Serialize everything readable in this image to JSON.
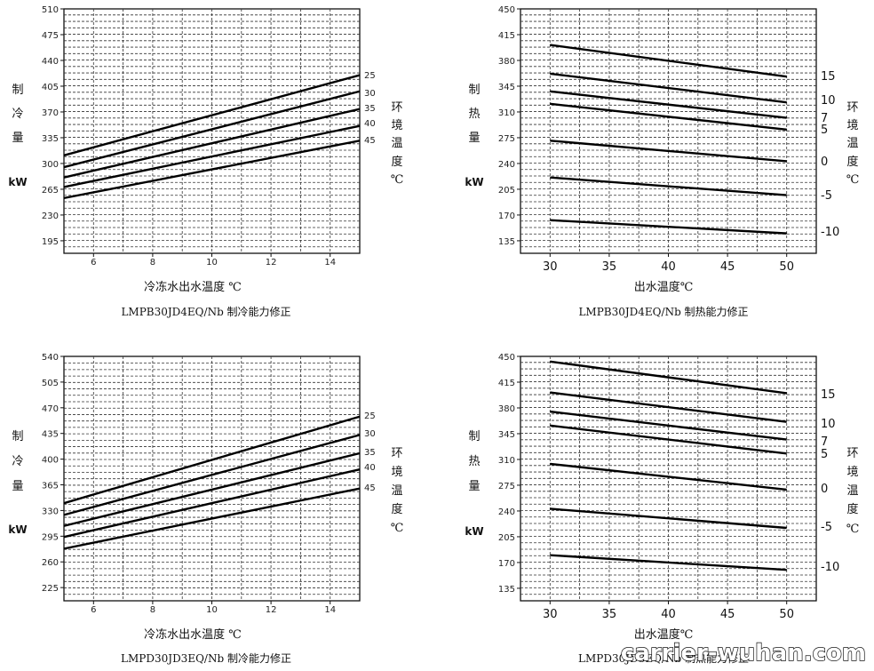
{
  "watermark": "carrier-wuhan.com",
  "chart_data": [
    {
      "type": "line",
      "title": "LMPB30JD4EQ/Nb 制冷能力修正",
      "xlabel": "冷冻水出水温度 ℃",
      "ylabel": [
        "制",
        "冷",
        "量"
      ],
      "yunit": "kW",
      "legend_title": [
        "环",
        "境",
        "温",
        "度",
        "℃"
      ],
      "xlim": [
        5,
        15
      ],
      "ylim": [
        178,
        510
      ],
      "xticks": [
        6,
        8,
        10,
        12,
        14
      ],
      "yticks": [
        195,
        230,
        265,
        300,
        335,
        370,
        405,
        440,
        475,
        510
      ],
      "grid": true,
      "series": [
        {
          "name": "25",
          "x": [
            5,
            15
          ],
          "values": [
            311,
            420
          ]
        },
        {
          "name": "30",
          "x": [
            5,
            15
          ],
          "values": [
            295,
            398
          ]
        },
        {
          "name": "35",
          "x": [
            5,
            15
          ],
          "values": [
            281,
            374
          ]
        },
        {
          "name": "40",
          "x": [
            5,
            15
          ],
          "values": [
            268,
            351
          ]
        },
        {
          "name": "45",
          "x": [
            5,
            15
          ],
          "values": [
            253,
            331
          ]
        }
      ]
    },
    {
      "type": "line",
      "title": "LMPB30JD4EQ/Nb 制热能力修正",
      "xlabel": "出水温度℃",
      "ylabel": [
        "制",
        "热",
        "量"
      ],
      "yunit": "kW",
      "legend_title": [
        "环",
        "境",
        "温",
        "度",
        "℃"
      ],
      "xlim": [
        27.5,
        52.5
      ],
      "ylim": [
        118,
        450
      ],
      "xticks": [
        30,
        35,
        40,
        45,
        50
      ],
      "yticks": [
        135,
        170,
        205,
        240,
        275,
        310,
        345,
        380,
        415,
        450
      ],
      "grid": true,
      "series": [
        {
          "name": "15",
          "x": [
            30,
            50
          ],
          "values": [
            401,
            358
          ]
        },
        {
          "name": "10",
          "x": [
            30,
            50
          ],
          "values": [
            362,
            323
          ]
        },
        {
          "name": "7",
          "x": [
            30,
            50
          ],
          "values": [
            338,
            302
          ]
        },
        {
          "name": "5",
          "x": [
            30,
            50
          ],
          "values": [
            321,
            286
          ]
        },
        {
          "name": "0",
          "x": [
            30,
            50
          ],
          "values": [
            271,
            243
          ]
        },
        {
          "name": "-5",
          "x": [
            30,
            50
          ],
          "values": [
            221,
            197
          ]
        },
        {
          "name": "-10",
          "x": [
            30,
            50
          ],
          "values": [
            163,
            145
          ]
        }
      ]
    },
    {
      "type": "line",
      "title": "LMPD30JD3EQ/Nb 制冷能力修正",
      "xlabel": "冷冻水出水温度 ℃",
      "ylabel": [
        "制",
        "冷",
        "量"
      ],
      "yunit": "kW",
      "legend_title": [
        "环",
        "境",
        "温",
        "度",
        "℃"
      ],
      "xlim": [
        5,
        15
      ],
      "ylim": [
        207,
        540
      ],
      "xticks": [
        6,
        8,
        10,
        12,
        14
      ],
      "yticks": [
        225,
        260,
        295,
        330,
        365,
        400,
        435,
        470,
        505,
        540
      ],
      "grid": true,
      "series": [
        {
          "name": "25",
          "x": [
            5,
            15
          ],
          "values": [
            340,
            458
          ]
        },
        {
          "name": "30",
          "x": [
            5,
            15
          ],
          "values": [
            324,
            433
          ]
        },
        {
          "name": "35",
          "x": [
            5,
            15
          ],
          "values": [
            309,
            408
          ]
        },
        {
          "name": "40",
          "x": [
            5,
            15
          ],
          "values": [
            294,
            386
          ]
        },
        {
          "name": "45",
          "x": [
            5,
            15
          ],
          "values": [
            278,
            360
          ]
        }
      ]
    },
    {
      "type": "line",
      "title": "LMPD30JD3EQ/Nb 制热能力修正",
      "xlabel": "出水温度℃",
      "ylabel": [
        "制",
        "热",
        "量"
      ],
      "yunit": "kW",
      "legend_title": [
        "环",
        "境",
        "温",
        "度",
        "℃"
      ],
      "xlim": [
        27.5,
        52.5
      ],
      "ylim": [
        118,
        450
      ],
      "xticks": [
        30,
        35,
        40,
        45,
        50
      ],
      "yticks": [
        135,
        170,
        205,
        240,
        275,
        310,
        345,
        380,
        415,
        450
      ],
      "grid": true,
      "series": [
        {
          "name": "15",
          "x": [
            30,
            50
          ],
          "values": [
            443,
            400
          ]
        },
        {
          "name": "10",
          "x": [
            30,
            50
          ],
          "values": [
            401,
            361
          ]
        },
        {
          "name": "7",
          "x": [
            30,
            50
          ],
          "values": [
            375,
            337
          ]
        },
        {
          "name": "5",
          "x": [
            30,
            50
          ],
          "values": [
            356,
            318
          ]
        },
        {
          "name": "0",
          "x": [
            30,
            50
          ],
          "values": [
            304,
            269
          ]
        },
        {
          "name": "-5",
          "x": [
            30,
            50
          ],
          "values": [
            243,
            217
          ]
        },
        {
          "name": "-10",
          "x": [
            30,
            50
          ],
          "values": [
            180,
            160
          ]
        }
      ]
    }
  ]
}
